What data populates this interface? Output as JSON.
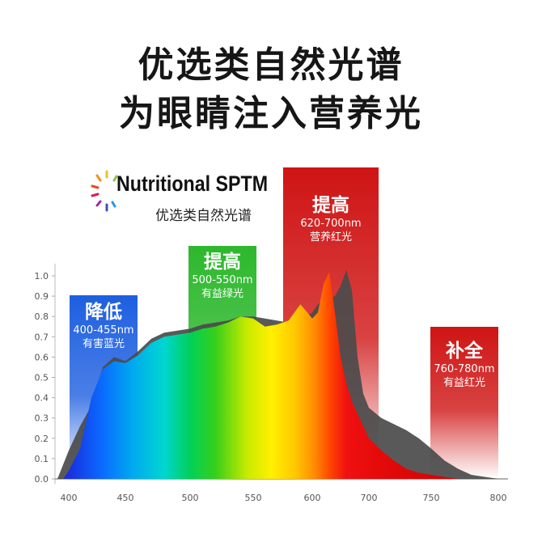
{
  "header": {
    "title": "优选类自然光谱",
    "subtitle": "为眼睛注入营养光"
  },
  "logo": {
    "name": "Nutritional SPTM",
    "sub": "优选类自然光谱"
  },
  "bands": [
    {
      "title": "降低",
      "range": "400-455nm",
      "desc": "有害蓝光",
      "color": "#1e5fe0"
    },
    {
      "title": "提高",
      "range": "500-550nm",
      "desc": "有益绿光",
      "color": "#2db82d"
    },
    {
      "title": "提高",
      "range": "620-700nm",
      "desc": "营养红光",
      "color": "#cf1414"
    },
    {
      "title": "补全",
      "range": "760-780nm",
      "desc": "有益红光",
      "color": "#cf1414"
    }
  ],
  "chart_data": {
    "type": "area",
    "title": "",
    "xlabel": "",
    "ylabel": "",
    "xlim": [
      390,
      800
    ],
    "ylim": [
      0,
      1.0
    ],
    "x_ticks": [
      400,
      450,
      500,
      550,
      600,
      700,
      750,
      800
    ],
    "x_tick_labels": [
      "400",
      "450",
      "500",
      "550",
      "600",
      "700",
      "750",
      "800"
    ],
    "y_ticks": [
      "0.0",
      "0.1",
      "0.2",
      "0.3",
      "0.4",
      "0.5",
      "0.6",
      "0.7",
      "0.8",
      "0.9",
      "1.0"
    ],
    "series": [
      {
        "x": [
          390,
          400,
          410,
          420,
          430,
          440,
          450,
          460,
          470,
          480,
          490,
          500,
          510,
          520,
          530,
          540,
          550,
          560,
          570,
          580,
          590,
          600,
          610,
          620,
          630,
          640,
          650,
          660,
          670,
          680,
          690,
          700,
          710,
          720,
          730,
          740,
          750,
          760,
          770,
          780,
          790,
          800
        ],
        "y": [
          0.0,
          0.14,
          0.26,
          0.36,
          0.55,
          0.6,
          0.58,
          0.63,
          0.69,
          0.72,
          0.73,
          0.74,
          0.76,
          0.77,
          0.78,
          0.8,
          0.8,
          0.79,
          0.78,
          0.77,
          0.78,
          0.82,
          0.86,
          0.88,
          0.89,
          0.9,
          0.95,
          1.03,
          0.93,
          0.6,
          0.42,
          0.35,
          0.3,
          0.27,
          0.24,
          0.2,
          0.15,
          0.09,
          0.05,
          0.02,
          0.01,
          0.0
        ]
      },
      {
        "x": [
          395,
          400,
          410,
          420,
          430,
          440,
          450,
          460,
          470,
          480,
          490,
          500,
          510,
          520,
          530,
          540,
          550,
          560,
          570,
          580,
          590,
          600,
          610,
          620,
          630,
          640,
          650,
          660,
          670,
          680,
          690,
          700,
          710,
          720,
          730,
          740,
          750,
          760,
          770,
          780,
          790,
          800
        ],
        "y": [
          0.0,
          0.04,
          0.15,
          0.4,
          0.54,
          0.58,
          0.57,
          0.61,
          0.67,
          0.7,
          0.71,
          0.72,
          0.74,
          0.75,
          0.77,
          0.8,
          0.79,
          0.75,
          0.76,
          0.78,
          0.86,
          0.79,
          0.82,
          0.96,
          1.02,
          0.82,
          0.6,
          0.47,
          0.38,
          0.32,
          0.26,
          0.2,
          0.14,
          0.09,
          0.05,
          0.03,
          0.02,
          0.01,
          0.0,
          0.0,
          0.0,
          0.0
        ]
      }
    ]
  }
}
